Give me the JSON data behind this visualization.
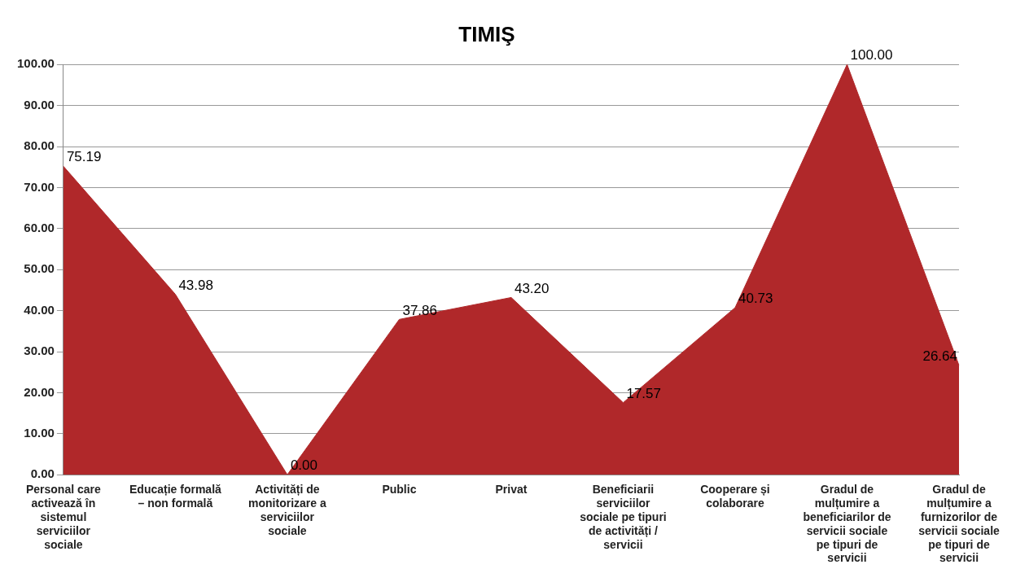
{
  "chart_data": {
    "type": "area",
    "title": "TIMIŞ",
    "categories": [
      "Personal care activează în sistemul serviciilor sociale",
      "Educație formală – non formală",
      "Activități de monitorizare a serviciilor sociale",
      "Public",
      "Privat",
      "Beneficiarii serviciilor sociale pe tipuri de activități / servicii",
      "Cooperare și colaborare",
      "Gradul de mulțumire a beneficiarilor de servicii sociale pe tipuri de servicii",
      "Gradul de mulțumire a furnizorilor de servicii sociale pe tipuri de servicii"
    ],
    "values": [
      75.19,
      43.98,
      0,
      37.86,
      43.2,
      17.57,
      40.73,
      100,
      26.64
    ],
    "value_labels": [
      "75.19",
      "43.98",
      "0.00",
      "37.86",
      "43.20",
      "17.57",
      "40.73",
      "100.00",
      "26.64"
    ],
    "color": "#b0282a",
    "ylim": [
      0,
      100
    ],
    "yticks": [
      {
        "value": 0,
        "label": "0.00"
      },
      {
        "value": 10,
        "label": "10.00"
      },
      {
        "value": 20,
        "label": "20.00"
      },
      {
        "value": 30,
        "label": "30.00"
      },
      {
        "value": 40,
        "label": "40.00"
      },
      {
        "value": 50,
        "label": "50.00"
      },
      {
        "value": 60,
        "label": "60.00"
      },
      {
        "value": 70,
        "label": "70.00"
      },
      {
        "value": 80,
        "label": "80.00"
      },
      {
        "value": 90,
        "label": "90.00"
      },
      {
        "value": 100,
        "label": "100.00"
      }
    ],
    "grid": "y",
    "legend": false
  }
}
